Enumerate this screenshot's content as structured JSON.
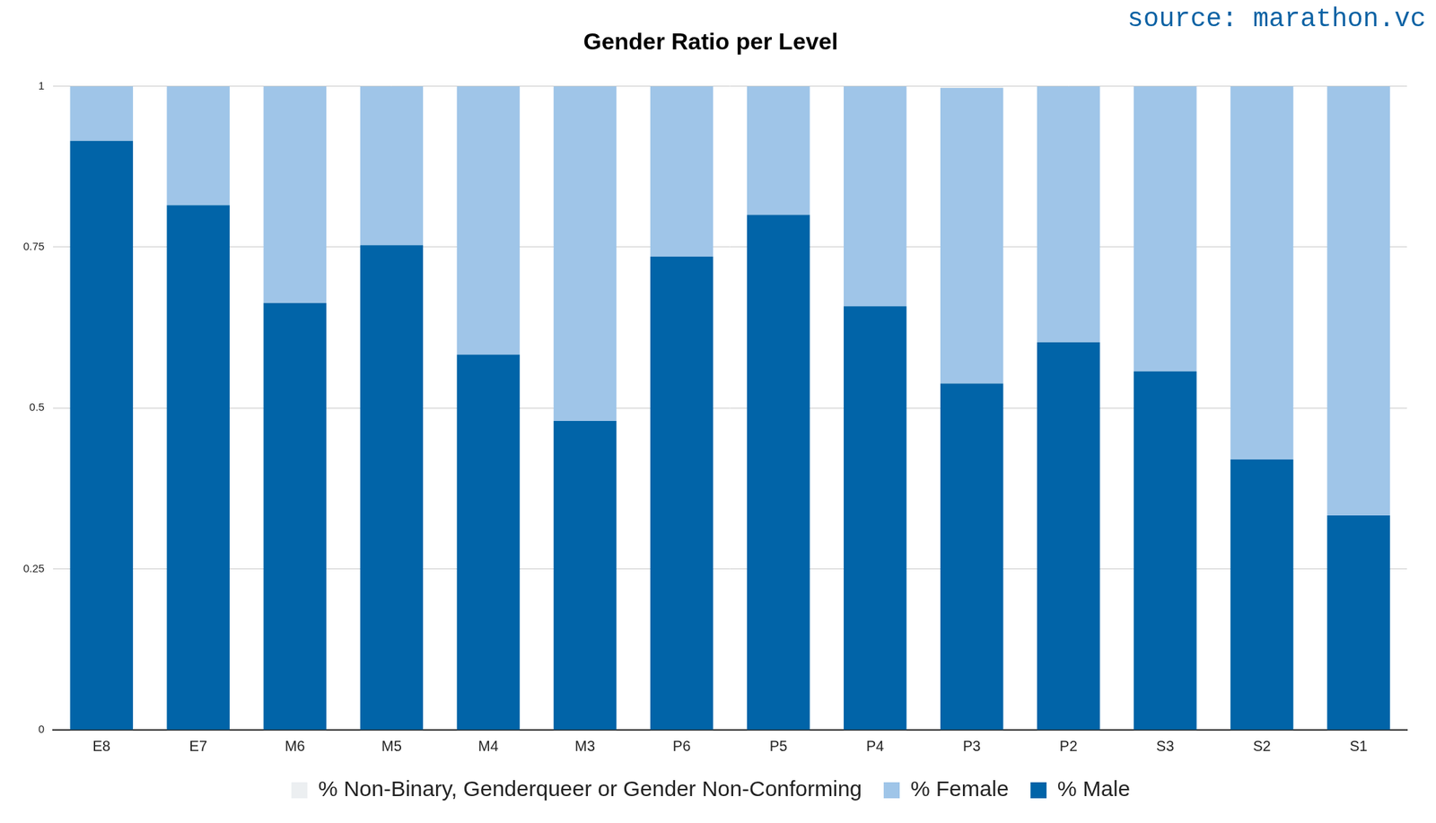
{
  "chart_data": {
    "type": "bar",
    "title": "Gender Ratio per Level",
    "annotations": [
      "source: marathon.vc"
    ],
    "categories": [
      "E8",
      "E7",
      "M6",
      "M5",
      "M4",
      "M3",
      "P6",
      "P5",
      "P4",
      "P3",
      "P2",
      "S3",
      "S2",
      "S1"
    ],
    "series": [
      {
        "name": "% Male",
        "color": "#0164a8",
        "values": [
          0.915,
          0.815,
          0.663,
          0.753,
          0.583,
          0.48,
          0.735,
          0.8,
          0.658,
          0.538,
          0.602,
          0.557,
          0.42,
          0.333
        ]
      },
      {
        "name": "% Female",
        "color": "#9fc5e8",
        "values": [
          0.085,
          0.185,
          0.337,
          0.247,
          0.417,
          0.52,
          0.265,
          0.2,
          0.342,
          0.459,
          0.398,
          0.443,
          0.58,
          0.667
        ]
      },
      {
        "name": "% Non-Binary, Genderqueer or Gender Non-Conforming",
        "color": "#eceff1",
        "values": [
          0,
          0,
          0,
          0,
          0,
          0,
          0,
          0,
          0,
          0.003,
          0,
          0,
          0,
          0
        ]
      }
    ],
    "stacked": true,
    "ylim": [
      0,
      1
    ],
    "yticks": [
      0,
      0.25,
      0.5,
      0.75,
      1
    ],
    "grid": true,
    "legend": "bottom"
  }
}
